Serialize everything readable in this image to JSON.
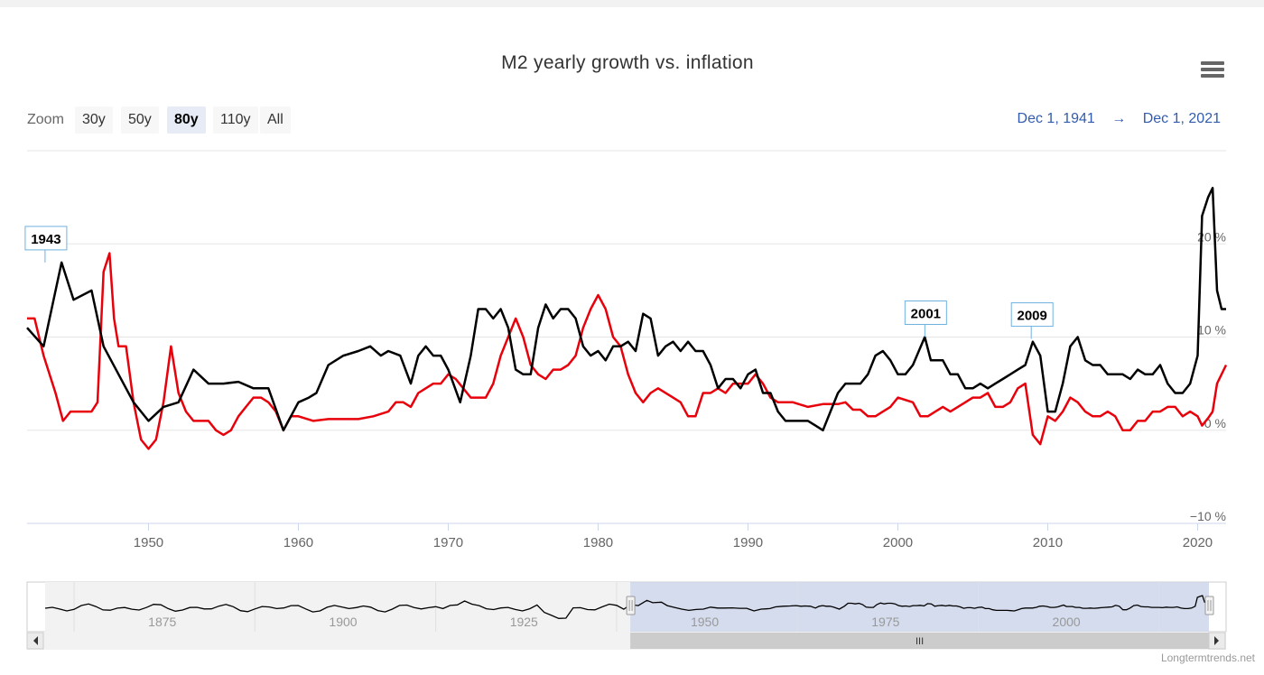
{
  "title": "M2 yearly growth vs. inflation",
  "zoom": {
    "label": "Zoom",
    "buttons": [
      "30y",
      "50y",
      "80y",
      "110y",
      "All"
    ],
    "active": "80y"
  },
  "range": {
    "from": "Dec 1, 1941",
    "arrow": "→",
    "to": "Dec 1, 2021"
  },
  "menu_icon": "hamburger-menu-icon",
  "credit": "Longtermtrends.net",
  "colors": {
    "m2": "#000000",
    "inflation": "#e8000b",
    "navigator_mask": "#cdd6ea",
    "flag_border": "#6fb2e0"
  },
  "chart_data": {
    "type": "line",
    "title": "M2 yearly growth vs. inflation",
    "xlim": [
      1941.9,
      2021.9
    ],
    "ylim": [
      -10,
      30
    ],
    "yticks": [
      {
        "v": -10,
        "label": "−10 %"
      },
      {
        "v": 0,
        "label": "0 %"
      },
      {
        "v": 10,
        "label": "10 %"
      },
      {
        "v": 20,
        "label": "20 %"
      }
    ],
    "xticks": [
      1950,
      1960,
      1970,
      1980,
      1990,
      2000,
      2010,
      2020
    ],
    "grid": true,
    "flags": [
      {
        "x": 1943.1,
        "y": 18,
        "label": "1943"
      },
      {
        "x": 2001.8,
        "y": 10,
        "label": "2001"
      },
      {
        "x": 2008.9,
        "y": 9.8,
        "label": "2009"
      }
    ],
    "series": [
      {
        "key": "m2",
        "points": [
          [
            1941.9,
            11
          ],
          [
            1943.0,
            9
          ],
          [
            1944.2,
            18
          ],
          [
            1945.0,
            14
          ],
          [
            1946.2,
            15
          ],
          [
            1947.0,
            9
          ],
          [
            1948.0,
            6
          ],
          [
            1949.0,
            3
          ],
          [
            1950.0,
            1
          ],
          [
            1951.0,
            2.5
          ],
          [
            1952.0,
            3
          ],
          [
            1953.0,
            6.5
          ],
          [
            1954.0,
            5
          ],
          [
            1955.0,
            5
          ],
          [
            1956.0,
            5.2
          ],
          [
            1957.0,
            4.5
          ],
          [
            1958.0,
            4.5
          ],
          [
            1959.0,
            0
          ],
          [
            1960.0,
            3
          ],
          [
            1960.7,
            3.5
          ],
          [
            1961.2,
            4
          ],
          [
            1962.0,
            7
          ],
          [
            1963.0,
            8
          ],
          [
            1964.0,
            8.5
          ],
          [
            1964.8,
            9
          ],
          [
            1965.5,
            8
          ],
          [
            1966.0,
            8.5
          ],
          [
            1966.8,
            8
          ],
          [
            1967.5,
            5
          ],
          [
            1968.0,
            8
          ],
          [
            1968.5,
            9
          ],
          [
            1969.0,
            8
          ],
          [
            1969.5,
            8
          ],
          [
            1970.0,
            6.5
          ],
          [
            1970.8,
            3
          ],
          [
            1971.5,
            8
          ],
          [
            1972.0,
            13
          ],
          [
            1972.5,
            13
          ],
          [
            1973.0,
            12
          ],
          [
            1973.5,
            13
          ],
          [
            1974.0,
            11
          ],
          [
            1974.5,
            6.5
          ],
          [
            1975.0,
            6
          ],
          [
            1975.5,
            6
          ],
          [
            1976.0,
            11
          ],
          [
            1976.5,
            13.5
          ],
          [
            1977.0,
            12
          ],
          [
            1977.5,
            13
          ],
          [
            1978.0,
            13
          ],
          [
            1978.5,
            12
          ],
          [
            1979.0,
            9
          ],
          [
            1979.5,
            8
          ],
          [
            1980.0,
            8.5
          ],
          [
            1980.5,
            7.5
          ],
          [
            1981.0,
            9
          ],
          [
            1981.5,
            9
          ],
          [
            1982.0,
            9.5
          ],
          [
            1982.5,
            8.5
          ],
          [
            1983.0,
            12.5
          ],
          [
            1983.5,
            12
          ],
          [
            1984.0,
            8
          ],
          [
            1984.5,
            9
          ],
          [
            1985.0,
            9.5
          ],
          [
            1985.5,
            8.5
          ],
          [
            1986.0,
            9.5
          ],
          [
            1986.5,
            8.5
          ],
          [
            1987.0,
            8.5
          ],
          [
            1987.5,
            7
          ],
          [
            1988.0,
            4.5
          ],
          [
            1988.5,
            5.5
          ],
          [
            1989.0,
            5.5
          ],
          [
            1989.5,
            4.5
          ],
          [
            1990.0,
            6
          ],
          [
            1990.5,
            6.5
          ],
          [
            1991.0,
            4
          ],
          [
            1991.5,
            4
          ],
          [
            1992.0,
            2
          ],
          [
            1992.5,
            1
          ],
          [
            1993.0,
            1
          ],
          [
            1993.5,
            1
          ],
          [
            1994.0,
            1
          ],
          [
            1994.5,
            0.5
          ],
          [
            1995.0,
            0
          ],
          [
            1995.5,
            2
          ],
          [
            1996.0,
            4
          ],
          [
            1996.5,
            5
          ],
          [
            1997.0,
            5
          ],
          [
            1997.5,
            5
          ],
          [
            1998.0,
            6
          ],
          [
            1998.5,
            8
          ],
          [
            1999.0,
            8.5
          ],
          [
            1999.5,
            7.5
          ],
          [
            2000.0,
            6
          ],
          [
            2000.5,
            6
          ],
          [
            2001.0,
            7
          ],
          [
            2001.8,
            10
          ],
          [
            2002.2,
            7.5
          ],
          [
            2003.0,
            7.5
          ],
          [
            2003.5,
            6
          ],
          [
            2004.0,
            6
          ],
          [
            2004.5,
            4.5
          ],
          [
            2005.0,
            4.5
          ],
          [
            2005.5,
            5
          ],
          [
            2006.0,
            4.5
          ],
          [
            2006.5,
            5
          ],
          [
            2007.0,
            5.5
          ],
          [
            2007.5,
            6
          ],
          [
            2008.0,
            6.5
          ],
          [
            2008.5,
            7
          ],
          [
            2009.0,
            9.5
          ],
          [
            2009.5,
            8
          ],
          [
            2010.0,
            2
          ],
          [
            2010.5,
            2
          ],
          [
            2011.0,
            5
          ],
          [
            2011.5,
            9
          ],
          [
            2012.0,
            10
          ],
          [
            2012.5,
            7.5
          ],
          [
            2013.0,
            7
          ],
          [
            2013.5,
            7
          ],
          [
            2014.0,
            6
          ],
          [
            2014.5,
            6
          ],
          [
            2015.0,
            6
          ],
          [
            2015.5,
            5.5
          ],
          [
            2016.0,
            6.5
          ],
          [
            2016.5,
            6
          ],
          [
            2017.0,
            6
          ],
          [
            2017.5,
            7
          ],
          [
            2018.0,
            5
          ],
          [
            2018.5,
            4
          ],
          [
            2019.0,
            4
          ],
          [
            2019.5,
            5
          ],
          [
            2020.0,
            8
          ],
          [
            2020.3,
            23
          ],
          [
            2020.7,
            25
          ],
          [
            2021.0,
            26
          ],
          [
            2021.3,
            15
          ],
          [
            2021.6,
            13
          ],
          [
            2021.9,
            13
          ]
        ]
      },
      {
        "key": "inflation",
        "points": [
          [
            1941.9,
            12
          ],
          [
            1942.4,
            12
          ],
          [
            1943.0,
            8
          ],
          [
            1943.8,
            4
          ],
          [
            1944.3,
            1
          ],
          [
            1944.8,
            2
          ],
          [
            1945.5,
            2
          ],
          [
            1946.2,
            2
          ],
          [
            1946.6,
            3
          ],
          [
            1947.0,
            17
          ],
          [
            1947.4,
            19
          ],
          [
            1947.7,
            12
          ],
          [
            1948.0,
            9
          ],
          [
            1948.5,
            9
          ],
          [
            1949.0,
            3
          ],
          [
            1949.5,
            -1
          ],
          [
            1950.0,
            -2
          ],
          [
            1950.5,
            -1
          ],
          [
            1951.0,
            3
          ],
          [
            1951.5,
            9
          ],
          [
            1952.0,
            4
          ],
          [
            1952.5,
            2
          ],
          [
            1953.0,
            1
          ],
          [
            1953.5,
            1
          ],
          [
            1954.0,
            1
          ],
          [
            1954.5,
            0
          ],
          [
            1955.0,
            -0.5
          ],
          [
            1955.5,
            0
          ],
          [
            1956.0,
            1.5
          ],
          [
            1956.5,
            2.5
          ],
          [
            1957.0,
            3.5
          ],
          [
            1957.5,
            3.5
          ],
          [
            1958.0,
            3
          ],
          [
            1958.5,
            2
          ],
          [
            1959.0,
            0
          ],
          [
            1959.5,
            1.5
          ],
          [
            1960.0,
            1.5
          ],
          [
            1961.0,
            1
          ],
          [
            1962.0,
            1.2
          ],
          [
            1963.0,
            1.2
          ],
          [
            1964.0,
            1.2
          ],
          [
            1965.0,
            1.5
          ],
          [
            1966.0,
            2
          ],
          [
            1966.5,
            3
          ],
          [
            1967.0,
            3
          ],
          [
            1967.5,
            2.5
          ],
          [
            1968.0,
            4
          ],
          [
            1968.5,
            4.5
          ],
          [
            1969.0,
            5
          ],
          [
            1969.5,
            5
          ],
          [
            1970.0,
            6
          ],
          [
            1970.5,
            5.5
          ],
          [
            1971.0,
            4.5
          ],
          [
            1971.5,
            3.5
          ],
          [
            1972.0,
            3.5
          ],
          [
            1972.5,
            3.5
          ],
          [
            1973.0,
            5
          ],
          [
            1973.5,
            8
          ],
          [
            1974.0,
            10
          ],
          [
            1974.5,
            12
          ],
          [
            1975.0,
            10
          ],
          [
            1975.5,
            7
          ],
          [
            1976.0,
            6
          ],
          [
            1976.5,
            5.5
          ],
          [
            1977.0,
            6.5
          ],
          [
            1977.5,
            6.5
          ],
          [
            1978.0,
            7
          ],
          [
            1978.5,
            8
          ],
          [
            1979.0,
            11
          ],
          [
            1979.5,
            13
          ],
          [
            1980.0,
            14.5
          ],
          [
            1980.5,
            13
          ],
          [
            1981.0,
            10
          ],
          [
            1981.5,
            9
          ],
          [
            1982.0,
            6
          ],
          [
            1982.5,
            4
          ],
          [
            1983.0,
            3
          ],
          [
            1983.5,
            4
          ],
          [
            1984.0,
            4.5
          ],
          [
            1985.0,
            3.5
          ],
          [
            1985.5,
            3
          ],
          [
            1986.0,
            1.5
          ],
          [
            1986.5,
            1.5
          ],
          [
            1987.0,
            4
          ],
          [
            1987.5,
            4
          ],
          [
            1988.0,
            4.5
          ],
          [
            1988.5,
            4
          ],
          [
            1989.0,
            5
          ],
          [
            1989.5,
            5
          ],
          [
            1990.0,
            5
          ],
          [
            1990.5,
            6
          ],
          [
            1991.0,
            5
          ],
          [
            1991.5,
            3.5
          ],
          [
            1992.0,
            3
          ],
          [
            1993.0,
            3
          ],
          [
            1994.0,
            2.5
          ],
          [
            1995.0,
            2.8
          ],
          [
            1996.0,
            2.8
          ],
          [
            1996.5,
            3
          ],
          [
            1997.0,
            2.2
          ],
          [
            1997.5,
            2.2
          ],
          [
            1998.0,
            1.5
          ],
          [
            1998.5,
            1.5
          ],
          [
            1999.0,
            2
          ],
          [
            1999.5,
            2.5
          ],
          [
            2000.0,
            3.5
          ],
          [
            2001.0,
            3
          ],
          [
            2001.5,
            1.5
          ],
          [
            2002.0,
            1.5
          ],
          [
            2002.5,
            2
          ],
          [
            2003.0,
            2.5
          ],
          [
            2003.5,
            2
          ],
          [
            2004.0,
            2.5
          ],
          [
            2004.5,
            3
          ],
          [
            2005.0,
            3.5
          ],
          [
            2005.5,
            3.5
          ],
          [
            2006.0,
            4
          ],
          [
            2006.5,
            2.5
          ],
          [
            2007.0,
            2.5
          ],
          [
            2007.5,
            3
          ],
          [
            2008.0,
            4.5
          ],
          [
            2008.5,
            5
          ],
          [
            2009.0,
            -0.5
          ],
          [
            2009.5,
            -1.5
          ],
          [
            2010.0,
            1.5
          ],
          [
            2010.5,
            1
          ],
          [
            2011.0,
            2
          ],
          [
            2011.5,
            3.5
          ],
          [
            2012.0,
            3
          ],
          [
            2012.5,
            2
          ],
          [
            2013.0,
            1.5
          ],
          [
            2013.5,
            1.5
          ],
          [
            2014.0,
            2
          ],
          [
            2014.5,
            1.5
          ],
          [
            2015.0,
            0
          ],
          [
            2015.5,
            0
          ],
          [
            2016.0,
            1
          ],
          [
            2016.5,
            1
          ],
          [
            2017.0,
            2
          ],
          [
            2017.5,
            2
          ],
          [
            2018.0,
            2.5
          ],
          [
            2018.5,
            2.5
          ],
          [
            2019.0,
            1.5
          ],
          [
            2019.5,
            2
          ],
          [
            2020.0,
            1.5
          ],
          [
            2020.3,
            0.5
          ],
          [
            2020.7,
            1.3
          ],
          [
            2021.0,
            2
          ],
          [
            2021.3,
            5
          ],
          [
            2021.9,
            7
          ]
        ]
      }
    ]
  },
  "navigator": {
    "ticks": [
      "1875",
      "1900",
      "1925",
      "1950",
      "1975",
      "2000"
    ],
    "scrollbar_grip": "III"
  }
}
